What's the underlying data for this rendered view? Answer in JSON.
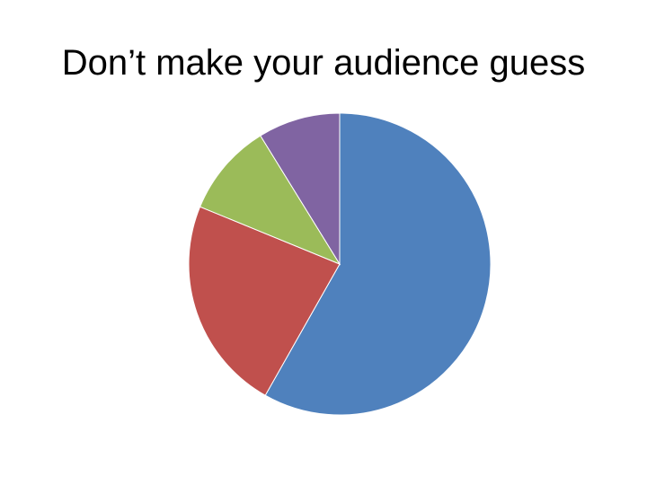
{
  "slide": {
    "title": "Don’t make your audience guess"
  },
  "chart_data": {
    "type": "pie",
    "title": "",
    "start_angle_deg": 0,
    "direction": "clockwise",
    "slices": [
      {
        "value": 58.2,
        "color": "#4F81BD"
      },
      {
        "value": 23.0,
        "color": "#C0504D"
      },
      {
        "value": 10.0,
        "color": "#9BBB59"
      },
      {
        "value": 8.8,
        "color": "#8064A2"
      }
    ],
    "legend": "none"
  }
}
